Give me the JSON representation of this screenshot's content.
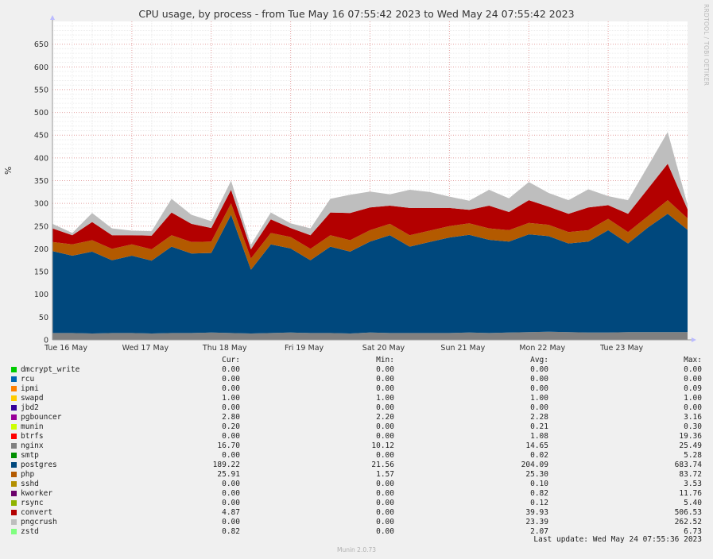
{
  "title": "CPU usage, by process - from Tue May 16 07:55:42 2023 to Wed May 24 07:55:42 2023",
  "rrdtool_label": "RRDTOOL / TOBI OETIKER",
  "legend_headers": {
    "cur": "Cur:",
    "min": "Min:",
    "avg": "Avg:",
    "max": "Max:"
  },
  "legend": [
    {
      "name": "dmcrypt_write",
      "color": "#00cc00",
      "cur": "0.00",
      "min": "0.00",
      "avg": "0.00",
      "max": "0.00"
    },
    {
      "name": "rcu",
      "color": "#0066b3",
      "cur": "0.00",
      "min": "0.00",
      "avg": "0.00",
      "max": "0.00"
    },
    {
      "name": "ipmi",
      "color": "#ff8000",
      "cur": "0.00",
      "min": "0.00",
      "avg": "0.00",
      "max": "0.09"
    },
    {
      "name": "swapd",
      "color": "#ffcc00",
      "cur": "1.00",
      "min": "1.00",
      "avg": "1.00",
      "max": "1.00"
    },
    {
      "name": "jbd2",
      "color": "#330099",
      "cur": "0.00",
      "min": "0.00",
      "avg": "0.00",
      "max": "0.00"
    },
    {
      "name": "pgbouncer",
      "color": "#990099",
      "cur": "2.80",
      "min": "2.20",
      "avg": "2.28",
      "max": "3.16"
    },
    {
      "name": "munin",
      "color": "#ccff00",
      "cur": "0.20",
      "min": "0.00",
      "avg": "0.21",
      "max": "0.30"
    },
    {
      "name": "btrfs",
      "color": "#ff0000",
      "cur": "0.00",
      "min": "0.00",
      "avg": "1.08",
      "max": "19.36"
    },
    {
      "name": "nginx",
      "color": "#808080",
      "cur": "16.70",
      "min": "10.12",
      "avg": "14.65",
      "max": "25.49"
    },
    {
      "name": "smtp",
      "color": "#008f00",
      "cur": "0.00",
      "min": "0.00",
      "avg": "0.02",
      "max": "5.28"
    },
    {
      "name": "postgres",
      "color": "#00487d",
      "cur": "189.22",
      "min": "21.56",
      "avg": "204.09",
      "max": "683.74"
    },
    {
      "name": "php",
      "color": "#b35a00",
      "cur": "25.91",
      "min": "1.57",
      "avg": "25.30",
      "max": "83.72"
    },
    {
      "name": "sshd",
      "color": "#b38f00",
      "cur": "0.00",
      "min": "0.00",
      "avg": "0.10",
      "max": "3.53"
    },
    {
      "name": "kworker",
      "color": "#6b006b",
      "cur": "0.00",
      "min": "0.00",
      "avg": "0.82",
      "max": "11.76"
    },
    {
      "name": "rsync",
      "color": "#8fb300",
      "cur": "0.00",
      "min": "0.00",
      "avg": "0.12",
      "max": "5.40"
    },
    {
      "name": "convert",
      "color": "#b30000",
      "cur": "4.87",
      "min": "0.00",
      "avg": "39.93",
      "max": "506.53"
    },
    {
      "name": "pngcrush",
      "color": "#bebebe",
      "cur": "0.00",
      "min": "0.00",
      "avg": "23.39",
      "max": "262.52"
    },
    {
      "name": "zstd",
      "color": "#80ff80",
      "cur": "0.82",
      "min": "0.00",
      "avg": "2.07",
      "max": "6.73"
    }
  ],
  "last_update": "Last update: Wed May 24 07:55:36 2023",
  "footer": "Munin 2.0.73",
  "chart_data": {
    "type": "area",
    "title": "CPU usage, by process - from Tue May 16 07:55:42 2023 to Wed May 24 07:55:42 2023",
    "ylabel": "%",
    "xlabel": "",
    "ylim": [
      0,
      700
    ],
    "yticks": [
      0,
      50,
      100,
      150,
      200,
      250,
      300,
      350,
      400,
      450,
      500,
      550,
      600,
      650
    ],
    "xticks": [
      {
        "day": 0,
        "label": "Tue 16 May"
      },
      {
        "day": 1,
        "label": "Wed 17 May"
      },
      {
        "day": 2,
        "label": "Thu 18 May"
      },
      {
        "day": 3,
        "label": "Fri 19 May"
      },
      {
        "day": 4,
        "label": "Sat 20 May"
      },
      {
        "day": 5,
        "label": "Sun 21 May"
      },
      {
        "day": 6,
        "label": "Mon 22 May"
      },
      {
        "day": 7,
        "label": "Tue 23 May"
      }
    ],
    "x_days": [
      0,
      0.25,
      0.5,
      0.75,
      1,
      1.25,
      1.5,
      1.75,
      2,
      2.25,
      2.5,
      2.75,
      3,
      3.25,
      3.5,
      3.75,
      4,
      4.25,
      4.5,
      4.75,
      5,
      5.25,
      5.5,
      5.75,
      6,
      6.25,
      6.5,
      6.75,
      7,
      7.25,
      7.5,
      7.75,
      8
    ],
    "series": [
      {
        "name": "nginx",
        "color": "#808080",
        "values": [
          15,
          15,
          14,
          15,
          15,
          14,
          15,
          15,
          16,
          15,
          14,
          15,
          16,
          15,
          15,
          14,
          16,
          15,
          15,
          15,
          15,
          16,
          15,
          16,
          17,
          18,
          17,
          16,
          16,
          17,
          17,
          17,
          17
        ]
      },
      {
        "name": "postgres",
        "color": "#00487d",
        "values": [
          180,
          170,
          180,
          160,
          170,
          160,
          190,
          175,
          175,
          260,
          140,
          195,
          185,
          160,
          190,
          180,
          200,
          215,
          190,
          200,
          210,
          215,
          205,
          200,
          215,
          210,
          195,
          200,
          225,
          195,
          230,
          260,
          225
        ]
      },
      {
        "name": "php",
        "color": "#b35a00",
        "values": [
          20,
          25,
          25,
          25,
          25,
          25,
          25,
          25,
          25,
          25,
          25,
          25,
          25,
          25,
          25,
          25,
          25,
          25,
          25,
          25,
          25,
          25,
          25,
          25,
          25,
          25,
          25,
          25,
          25,
          25,
          25,
          30,
          25
        ]
      },
      {
        "name": "convert",
        "color": "#b30000",
        "values": [
          30,
          20,
          40,
          30,
          20,
          30,
          50,
          40,
          30,
          30,
          20,
          30,
          20,
          30,
          50,
          60,
          50,
          40,
          60,
          50,
          40,
          30,
          50,
          40,
          50,
          40,
          40,
          50,
          30,
          40,
          60,
          80,
          20
        ]
      },
      {
        "name": "pngcrush",
        "color": "#bebebe",
        "values": [
          10,
          5,
          20,
          15,
          10,
          10,
          30,
          20,
          15,
          20,
          10,
          15,
          10,
          15,
          30,
          40,
          35,
          25,
          40,
          35,
          25,
          20,
          35,
          30,
          40,
          30,
          30,
          40,
          20,
          30,
          50,
          70,
          10
        ]
      }
    ]
  }
}
